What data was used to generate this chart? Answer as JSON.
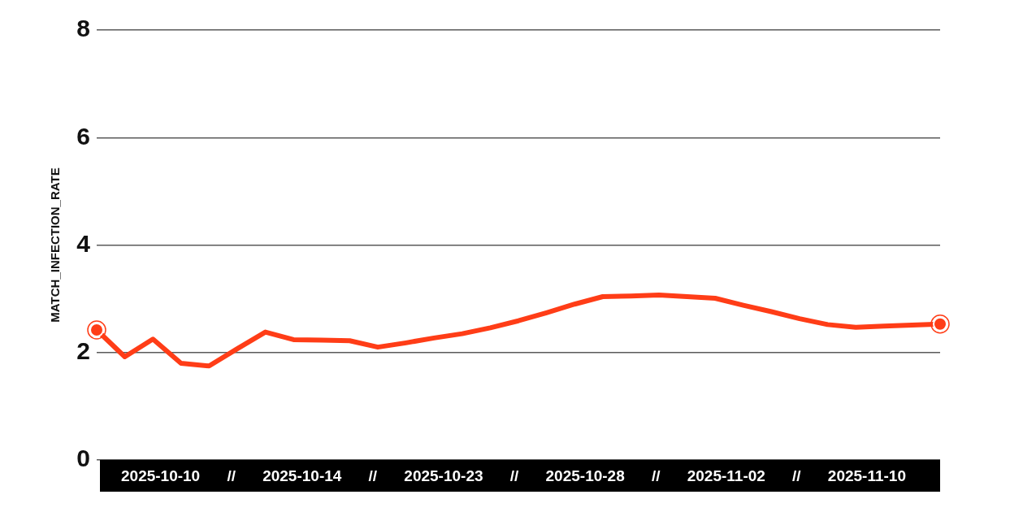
{
  "chart_data": {
    "type": "line",
    "ylabel": "MATCH_INFECTION_RATE",
    "categories": [
      null,
      null,
      null,
      null,
      null,
      null,
      null,
      null,
      null,
      null,
      null,
      null,
      null,
      null,
      null,
      null,
      null,
      null,
      null,
      null,
      null,
      null,
      null,
      null,
      null,
      null,
      null,
      null,
      null,
      null,
      null
    ],
    "series": [
      {
        "color": "#ff3d17",
        "values": [
          2.42,
          1.92,
          2.25,
          1.8,
          1.75,
          2.07,
          2.38,
          2.24,
          2.23,
          2.22,
          2.1,
          2.18,
          2.27,
          2.35,
          2.46,
          2.59,
          2.74,
          2.9,
          3.04,
          3.05,
          3.07,
          3.04,
          3.01,
          2.88,
          2.76,
          2.63,
          2.52,
          2.47,
          2.49,
          2.51,
          2.53
        ]
      },
      {
        "type": "scatter",
        "marker": "circle",
        "color": "#ff3d17",
        "values": [
          2.42,
          null,
          null,
          null,
          null,
          null,
          null,
          null,
          null,
          null,
          null,
          null,
          null,
          null,
          null,
          null,
          null,
          null,
          null,
          null,
          null,
          null,
          null,
          null,
          null,
          null,
          null,
          null,
          null,
          null,
          2.53
        ]
      }
    ],
    "ylim": [
      0,
      8
    ],
    "yticks": [
      0,
      2,
      4,
      6,
      8
    ],
    "grid": "y",
    "annotations": [
      "2025-10-10",
      "//",
      "2025-10-14",
      "//",
      "2025-10-23",
      "//",
      "2025-10-28",
      "//",
      "2025-11-02",
      "//",
      "2025-11-10"
    ]
  }
}
